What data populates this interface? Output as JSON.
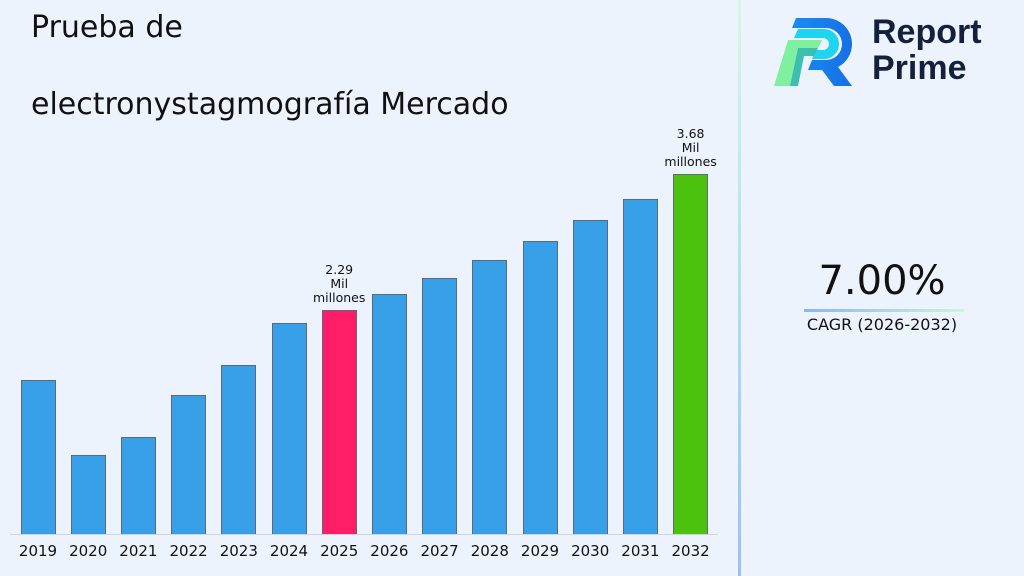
{
  "title": {
    "line1": "Prueba de",
    "line2": "electronystagmografía Mercado"
  },
  "logo": {
    "name_line1": "Report",
    "name_line2": "Prime",
    "icon": "report-prime-logo-icon"
  },
  "cagr": {
    "value": "7.00%",
    "label": "CAGR (2026-2032)"
  },
  "colors": {
    "bar_default": "#37a0e8",
    "bar_highlight_base": "#ff1d68",
    "bar_highlight_end": "#4cc10e",
    "background": "#edf3fd",
    "logo_text": "#14213d"
  },
  "chart_data": {
    "type": "bar",
    "title": "Prueba de electronystagmografía Mercado",
    "xlabel": "",
    "ylabel": "",
    "categories": [
      "2019",
      "2020",
      "2021",
      "2022",
      "2023",
      "2024",
      "2025",
      "2026",
      "2027",
      "2028",
      "2029",
      "2030",
      "2031",
      "2032"
    ],
    "values": [
      1.57,
      0.81,
      0.99,
      1.42,
      1.73,
      2.16,
      2.29,
      2.45,
      2.62,
      2.8,
      3.0,
      3.21,
      3.43,
      3.68
    ],
    "unit": "Mil millones",
    "annotations": [
      {
        "category": "2025",
        "text_value": "2.29",
        "text_unit1": "Mil",
        "text_unit2": "millones"
      },
      {
        "category": "2032",
        "text_value": "3.68",
        "text_unit1": "Mil",
        "text_unit2": "millones"
      }
    ],
    "highlight": {
      "2025": "#ff1d68",
      "2032": "#4cc10e"
    },
    "grid": false,
    "ylim": [
      0,
      3.8
    ],
    "legend": "none"
  }
}
